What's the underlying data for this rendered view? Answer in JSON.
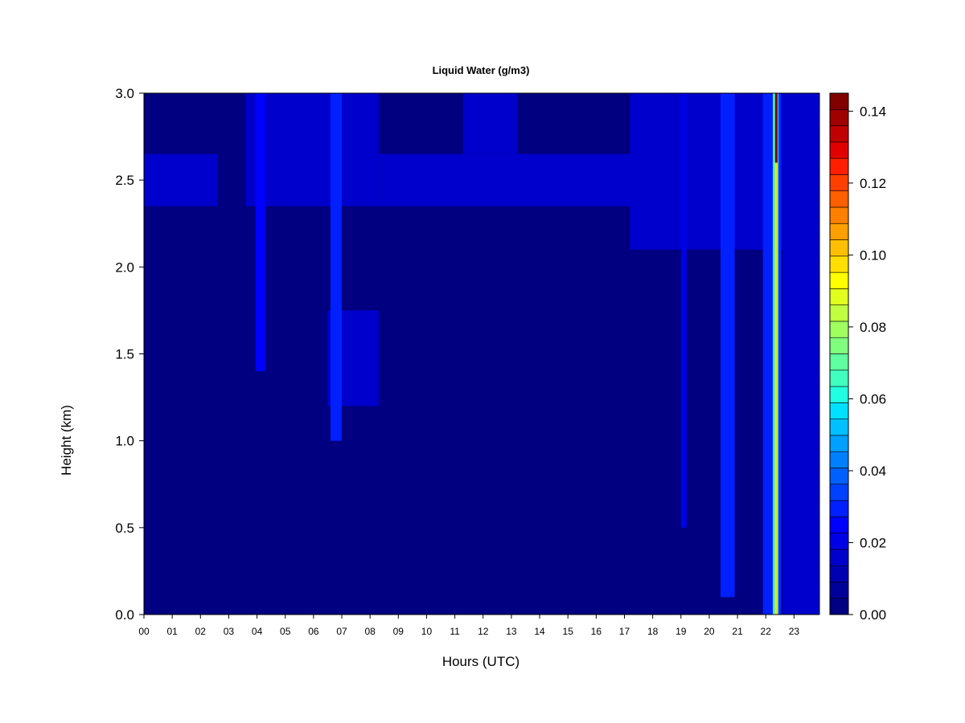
{
  "chart_data": {
    "type": "heatmap",
    "title": "Liquid Water (g/m3)",
    "xlabel": "Hours (UTC)",
    "ylabel": "Height (km)",
    "x_unit": "hour UTC",
    "y_unit": "km",
    "xlim": [
      0,
      23.9
    ],
    "ylim": [
      0.0,
      3.0
    ],
    "x_ticks": [
      "00",
      "01",
      "02",
      "03",
      "04",
      "05",
      "06",
      "07",
      "08",
      "09",
      "10",
      "11",
      "12",
      "13",
      "14",
      "15",
      "16",
      "17",
      "18",
      "19",
      "20",
      "21",
      "22",
      "23"
    ],
    "y_ticks": [
      "0.0",
      "0.5",
      "1.0",
      "1.5",
      "2.0",
      "2.5",
      "3.0"
    ],
    "colorbar": {
      "range": [
        0.0,
        0.145
      ],
      "ticks": [
        "0.00",
        "0.02",
        "0.04",
        "0.06",
        "0.08",
        "0.10",
        "0.12",
        "0.14"
      ],
      "levels": 29,
      "colors": [
        "#000080",
        "#00009a",
        "#0000b3",
        "#0000cc",
        "#0000e6",
        "#0000ff",
        "#0020ff",
        "#0040ff",
        "#0060ff",
        "#0080ff",
        "#00a0ff",
        "#00c0ff",
        "#00e0ff",
        "#20ffdf",
        "#40ffbf",
        "#60ff9f",
        "#80ff7f",
        "#a0ff5f",
        "#c0ff3f",
        "#e0ff1f",
        "#ffff00",
        "#ffdf00",
        "#ffbf00",
        "#ff9f00",
        "#ff7f00",
        "#ff5f00",
        "#ff3f00",
        "#ff1f00",
        "#e00000",
        "#c00000",
        "#a00000",
        "#800000"
      ]
    },
    "background_value": 0.0,
    "features": [
      {
        "x": [
          0.0,
          2.6
        ],
        "y": [
          2.35,
          2.65
        ],
        "value": 0.012
      },
      {
        "x": [
          3.6,
          8.3
        ],
        "y": [
          2.35,
          3.0
        ],
        "value": 0.015
      },
      {
        "x": [
          8.3,
          17.2
        ],
        "y": [
          2.35,
          2.65
        ],
        "value": 0.012
      },
      {
        "x": [
          11.3,
          13.2
        ],
        "y": [
          2.65,
          3.0
        ],
        "value": 0.012
      },
      {
        "x": [
          17.2,
          23.9
        ],
        "y": [
          2.1,
          3.0
        ],
        "value": 0.015
      },
      {
        "x": [
          6.5,
          8.3
        ],
        "y": [
          1.2,
          1.75
        ],
        "value": 0.012
      },
      {
        "x": [
          3.95,
          4.3
        ],
        "y": [
          1.4,
          3.0
        ],
        "value": 0.025
      },
      {
        "x": [
          6.6,
          7.0
        ],
        "y": [
          1.0,
          3.0
        ],
        "value": 0.03
      },
      {
        "x": [
          19.0,
          19.2
        ],
        "y": [
          0.5,
          3.0
        ],
        "value": 0.02
      },
      {
        "x": [
          20.4,
          20.9
        ],
        "y": [
          0.1,
          3.0
        ],
        "value": 0.03
      },
      {
        "x": [
          21.9,
          22.55
        ],
        "y": [
          0.0,
          3.0
        ],
        "value": 0.03
      },
      {
        "x": [
          22.25,
          22.45
        ],
        "y": [
          0.0,
          3.0
        ],
        "value": 0.06
      },
      {
        "x": [
          22.32,
          22.4
        ],
        "y": [
          0.0,
          3.0
        ],
        "value": 0.1
      },
      {
        "x": [
          22.33,
          22.42
        ],
        "y": [
          2.6,
          3.0
        ],
        "value": 0.145
      },
      {
        "x": [
          22.6,
          23.9
        ],
        "y": [
          0.0,
          3.0
        ],
        "value": 0.015
      }
    ]
  }
}
